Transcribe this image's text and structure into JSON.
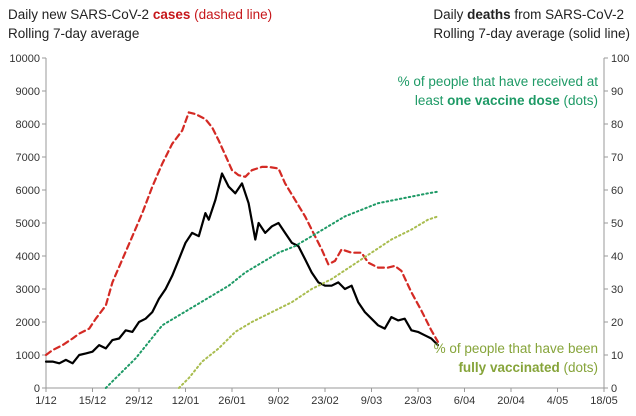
{
  "header_left": {
    "line1_prefix": "Daily new SARS-CoV-2 ",
    "line1_bold": "cases",
    "line1_suffix": " (dashed line)",
    "line2": "Rolling 7-day average"
  },
  "header_right": {
    "line1_prefix": "Daily ",
    "line1_bold": "deaths",
    "line1_suffix": " from SARS-CoV-2",
    "line2": "Rolling 7-day average (solid line)"
  },
  "annotation_first_dose": {
    "line1": "% of people that have received at",
    "line2_prefix": "least ",
    "line2_bold": "one vaccine dose",
    "line2_suffix": " (dots)"
  },
  "annotation_fully": {
    "line1": "% of people that have been",
    "line2_bold": "fully vaccinated",
    "line2_suffix": " (dots)"
  },
  "colors": {
    "cases": "#d42a24",
    "deaths": "#000000",
    "first_dose": "#1e9a66",
    "fully": "#a9bd4f",
    "axis": "#9a9a9a"
  },
  "chart_data": {
    "type": "line",
    "x_tick_labels": [
      "1/12",
      "15/12",
      "29/12",
      "12/01",
      "26/01",
      "9/02",
      "23/02",
      "9/03",
      "23/03",
      "6/04",
      "20/04",
      "4/05",
      "18/05"
    ],
    "y_left_ticks": [
      "0",
      "1000",
      "2000",
      "3000",
      "4000",
      "5000",
      "6000",
      "7000",
      "8000",
      "9000",
      "10000"
    ],
    "y_right_ticks": [
      "0",
      "10",
      "20",
      "30",
      "40",
      "50",
      "60",
      "70",
      "80",
      "90",
      "100"
    ],
    "ylim_left": [
      0,
      10000
    ],
    "ylim_right": [
      0,
      100
    ],
    "x_unit": "days since 1 December (2020)",
    "xlim": [
      0,
      168
    ],
    "series": [
      {
        "key": "cases",
        "axis": "left",
        "style": "dashed",
        "points": [
          [
            0,
            1000
          ],
          [
            2,
            1150
          ],
          [
            5,
            1300
          ],
          [
            8,
            1500
          ],
          [
            10,
            1650
          ],
          [
            13,
            1800
          ],
          [
            15,
            2100
          ],
          [
            18,
            2500
          ],
          [
            20,
            3200
          ],
          [
            23,
            3900
          ],
          [
            26,
            4600
          ],
          [
            29,
            5300
          ],
          [
            32,
            6100
          ],
          [
            35,
            6800
          ],
          [
            38,
            7400
          ],
          [
            41,
            7800
          ],
          [
            43,
            8350
          ],
          [
            45,
            8300
          ],
          [
            48,
            8150
          ],
          [
            50,
            7900
          ],
          [
            52,
            7500
          ],
          [
            54,
            7050
          ],
          [
            56,
            6600
          ],
          [
            58,
            6450
          ],
          [
            60,
            6400
          ],
          [
            62,
            6600
          ],
          [
            65,
            6700
          ],
          [
            67,
            6700
          ],
          [
            70,
            6650
          ],
          [
            72,
            6200
          ],
          [
            75,
            5700
          ],
          [
            78,
            5200
          ],
          [
            80,
            4800
          ],
          [
            83,
            4200
          ],
          [
            85,
            3750
          ],
          [
            87,
            3850
          ],
          [
            89,
            4200
          ],
          [
            92,
            4100
          ],
          [
            95,
            4100
          ],
          [
            97,
            3800
          ],
          [
            100,
            3650
          ],
          [
            103,
            3650
          ],
          [
            105,
            3700
          ],
          [
            107,
            3550
          ],
          [
            110,
            2900
          ],
          [
            113,
            2350
          ],
          [
            116,
            1750
          ],
          [
            118,
            1400
          ]
        ]
      },
      {
        "key": "deaths",
        "axis": "left",
        "style": "solid",
        "points": [
          [
            0,
            800
          ],
          [
            2,
            800
          ],
          [
            4,
            750
          ],
          [
            6,
            850
          ],
          [
            8,
            750
          ],
          [
            10,
            1000
          ],
          [
            12,
            1050
          ],
          [
            14,
            1100
          ],
          [
            16,
            1300
          ],
          [
            18,
            1200
          ],
          [
            20,
            1450
          ],
          [
            22,
            1500
          ],
          [
            24,
            1750
          ],
          [
            26,
            1700
          ],
          [
            28,
            2000
          ],
          [
            30,
            2100
          ],
          [
            32,
            2300
          ],
          [
            34,
            2700
          ],
          [
            36,
            3000
          ],
          [
            38,
            3400
          ],
          [
            40,
            3900
          ],
          [
            42,
            4400
          ],
          [
            44,
            4700
          ],
          [
            46,
            4600
          ],
          [
            48,
            5300
          ],
          [
            49,
            5100
          ],
          [
            51,
            5700
          ],
          [
            53,
            6500
          ],
          [
            55,
            6100
          ],
          [
            57,
            5900
          ],
          [
            59,
            6200
          ],
          [
            61,
            5600
          ],
          [
            63,
            4500
          ],
          [
            64,
            5000
          ],
          [
            66,
            4700
          ],
          [
            68,
            4900
          ],
          [
            70,
            5000
          ],
          [
            72,
            4700
          ],
          [
            74,
            4400
          ],
          [
            76,
            4300
          ],
          [
            78,
            3900
          ],
          [
            80,
            3500
          ],
          [
            82,
            3200
          ],
          [
            84,
            3100
          ],
          [
            86,
            3100
          ],
          [
            88,
            3200
          ],
          [
            90,
            3000
          ],
          [
            92,
            3100
          ],
          [
            94,
            2600
          ],
          [
            96,
            2300
          ],
          [
            98,
            2100
          ],
          [
            100,
            1900
          ],
          [
            102,
            1800
          ],
          [
            104,
            2150
          ],
          [
            106,
            2050
          ],
          [
            108,
            2100
          ],
          [
            110,
            1750
          ],
          [
            112,
            1700
          ],
          [
            114,
            1600
          ],
          [
            116,
            1500
          ],
          [
            118,
            1300
          ]
        ]
      },
      {
        "key": "first_dose",
        "axis": "right",
        "style": "dotted",
        "points": [
          [
            18,
            0
          ],
          [
            20,
            2
          ],
          [
            23,
            5
          ],
          [
            27,
            9
          ],
          [
            31,
            14
          ],
          [
            35,
            19
          ],
          [
            40,
            22
          ],
          [
            45,
            25
          ],
          [
            50,
            28
          ],
          [
            55,
            31
          ],
          [
            60,
            35
          ],
          [
            65,
            38
          ],
          [
            70,
            41
          ],
          [
            75,
            43
          ],
          [
            80,
            46
          ],
          [
            85,
            49
          ],
          [
            90,
            52
          ],
          [
            95,
            54
          ],
          [
            100,
            56
          ],
          [
            105,
            57
          ],
          [
            110,
            58
          ],
          [
            115,
            59
          ],
          [
            118,
            59.5
          ]
        ]
      },
      {
        "key": "fully",
        "axis": "right",
        "style": "dotted",
        "points": [
          [
            40,
            0
          ],
          [
            43,
            3
          ],
          [
            47,
            8
          ],
          [
            52,
            12
          ],
          [
            57,
            17
          ],
          [
            62,
            20
          ],
          [
            68,
            23
          ],
          [
            74,
            26
          ],
          [
            80,
            30
          ],
          [
            86,
            33
          ],
          [
            92,
            37
          ],
          [
            98,
            41
          ],
          [
            104,
            45
          ],
          [
            110,
            48
          ],
          [
            115,
            51
          ],
          [
            118,
            52
          ]
        ]
      }
    ]
  }
}
